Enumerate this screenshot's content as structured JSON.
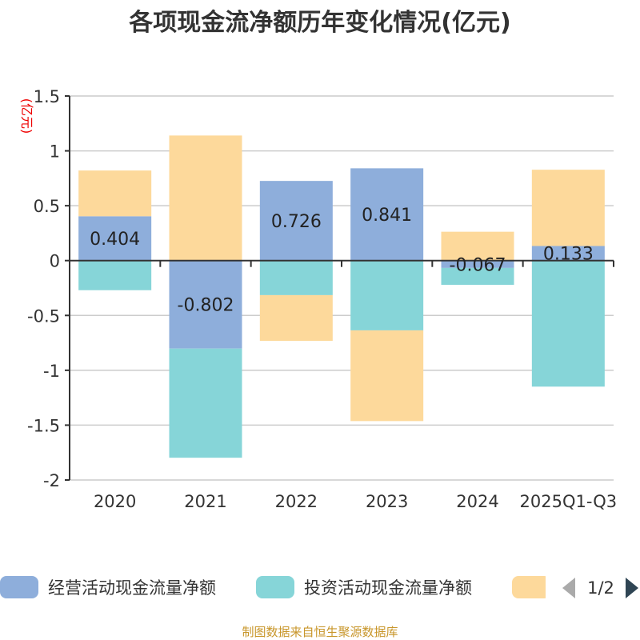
{
  "chart_data": {
    "type": "bar",
    "stacked": true,
    "title": "各项现金流净额历年变化情况(亿元)",
    "ylabel": "(亿元)",
    "xlabel": "",
    "ylim": [
      -2,
      1.5
    ],
    "yticks": [
      1.5,
      1,
      0.5,
      0,
      -0.5,
      -1,
      -1.5,
      -2
    ],
    "ytick_labels": [
      "1.5",
      "1",
      "0.5",
      "0",
      "-0.5",
      "-1",
      "-1.5",
      "-2"
    ],
    "grid": true,
    "categories": [
      "2020",
      "2021",
      "2022",
      "2023",
      "2024",
      "2025Q1-Q3"
    ],
    "series": [
      {
        "name": "经营活动现金流量净额",
        "color": "#8eaedb",
        "values": [
          0.404,
          -0.802,
          0.726,
          0.841,
          -0.067,
          0.133
        ],
        "labels": [
          "0.404",
          "-0.802",
          "0.726",
          "0.841",
          "-0.067",
          "0.133"
        ]
      },
      {
        "name": "投资活动现金流量净额",
        "color": "#86d5d8",
        "values": [
          -0.27,
          -0.995,
          -0.315,
          -0.636,
          -0.154,
          -1.149
        ]
      },
      {
        "name": "",
        "color": "#fdd99b",
        "values": [
          0.417,
          1.14,
          -0.417,
          -0.827,
          0.263,
          0.695
        ]
      }
    ],
    "legend_position": "bottom",
    "legend_page": "1/2"
  },
  "source": "制图数据来自恒生聚源数据库"
}
